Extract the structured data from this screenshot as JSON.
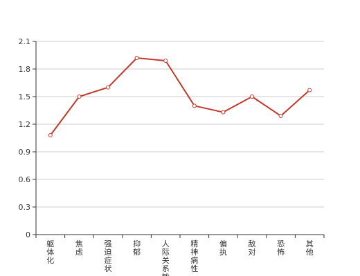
{
  "chart_data": {
    "type": "line",
    "categories": [
      "躯体化",
      "焦虑",
      "强迫症状",
      "抑郁",
      "人际关系敏感",
      "精神病性",
      "偏执",
      "敌对",
      "恐怖",
      "其他"
    ],
    "series": [
      {
        "values": [
          1.08,
          1.5,
          1.6,
          1.92,
          1.89,
          1.4,
          1.33,
          1.5,
          1.29,
          1.57
        ]
      }
    ],
    "ylim": [
      0,
      2.1
    ],
    "yticks": [
      "0",
      "0.3",
      "0.6",
      "0.9",
      "1.2",
      "1.5",
      "1.8",
      "2.1"
    ],
    "grid": true,
    "line_color": "#c0392b",
    "marker_fill": "#ffffff",
    "grid_color": "#cccccc",
    "axis_color": "#333333"
  }
}
